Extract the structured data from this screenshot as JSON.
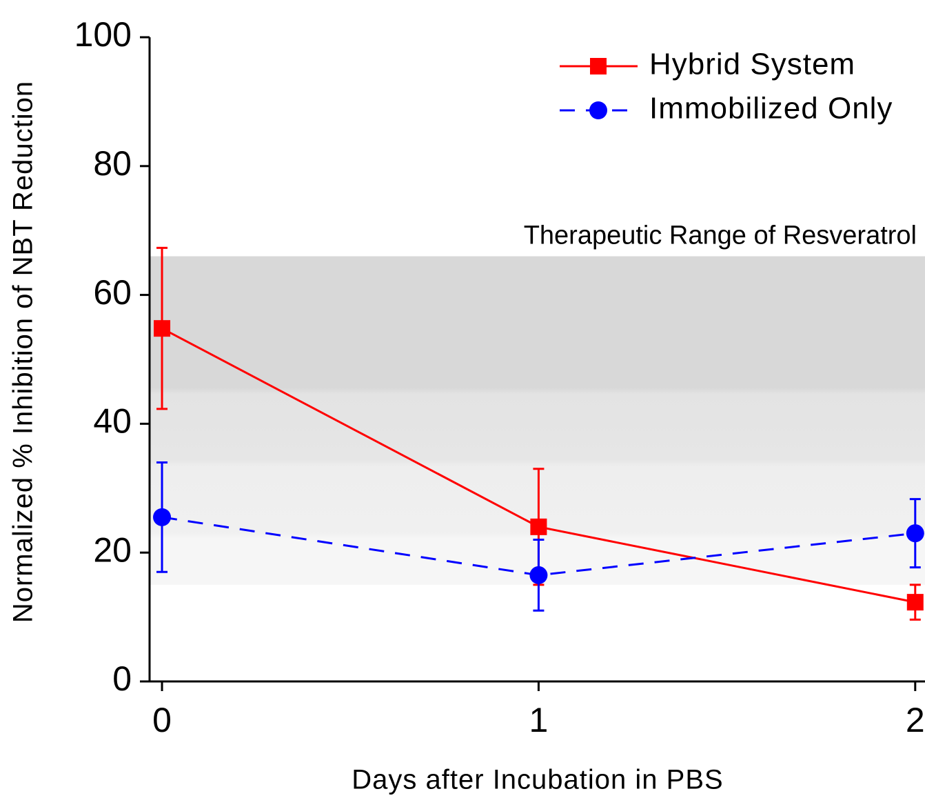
{
  "chart_data": {
    "type": "line",
    "x_label": "Days after Incubation in PBS",
    "y_label": "Normalized % Inhibition of NBT Reduction",
    "x": [
      0,
      1,
      2
    ],
    "xlim": [
      -0.033,
      2.026
    ],
    "xticks": [
      0,
      1,
      2
    ],
    "ylim": [
      0,
      100
    ],
    "yticks": [
      0,
      20,
      40,
      60,
      80,
      100
    ],
    "shaded_range": [
      15,
      66
    ],
    "shaded_range_label": "Therapeutic Range of Resveratrol",
    "legend": "upper right",
    "series": [
      {
        "name": "Hybrid System",
        "color": "#ff0000",
        "line_style": "solid",
        "marker": "square",
        "values": [
          54.8,
          24,
          12.3
        ],
        "errors": [
          12.5,
          9,
          2.7
        ]
      },
      {
        "name": "Immobilized Only",
        "color": "#0000ff",
        "line_style": "dashed",
        "marker": "circle",
        "values": [
          25.5,
          16.5,
          23
        ],
        "errors": [
          8.5,
          5.5,
          5.3
        ]
      }
    ]
  }
}
